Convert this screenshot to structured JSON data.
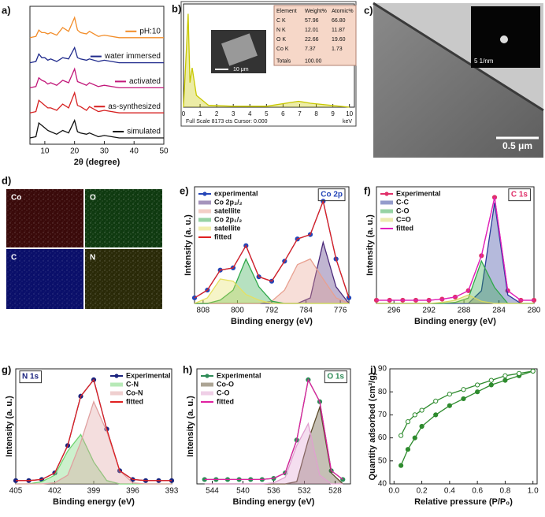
{
  "chart_data": [
    {
      "type": "line",
      "panel": "a)",
      "xlabel": "2θ (degree)",
      "x": [
        5,
        7,
        8,
        9,
        10,
        11,
        12,
        14,
        16,
        18,
        20,
        21,
        22,
        24,
        25,
        28,
        30,
        35,
        40,
        45,
        50
      ],
      "xlim": [
        5,
        50
      ],
      "xticks": [
        10,
        20,
        30,
        40,
        50
      ],
      "ylim": [
        -5,
        105
      ],
      "legend": "inline",
      "series": [
        {
          "name": "pH:10",
          "color": "#f28c28",
          "values": [
            80,
            81,
            86,
            84,
            84,
            83,
            84,
            82,
            88,
            85,
            96,
            86,
            84,
            83,
            85,
            81,
            82,
            80,
            80,
            80,
            80
          ]
        },
        {
          "name": "water immersed",
          "color": "#1f2a8c",
          "values": [
            60,
            61,
            67,
            64,
            64,
            62,
            63,
            61,
            64,
            63,
            72,
            64,
            63,
            62,
            63,
            61,
            62,
            60,
            60,
            60,
            60
          ]
        },
        {
          "name": "activated",
          "color": "#c2187a",
          "values": [
            40,
            41,
            48,
            46,
            45,
            43,
            44,
            42,
            46,
            44,
            55,
            45,
            44,
            42,
            44,
            41,
            42,
            40,
            40,
            40,
            40
          ]
        },
        {
          "name": "as-synthesized",
          "color": "#d62020",
          "values": [
            20,
            21,
            30,
            28,
            26,
            24,
            24,
            22,
            27,
            24,
            36,
            26,
            25,
            22,
            25,
            21,
            22,
            20,
            20,
            20,
            20
          ]
        },
        {
          "name": "simulated",
          "color": "#111111",
          "values": [
            0,
            1,
            12,
            10,
            8,
            6,
            5,
            3,
            6,
            4,
            14,
            5,
            4,
            3,
            4,
            1,
            2,
            0,
            0,
            0,
            0
          ]
        }
      ]
    },
    {
      "type": "line",
      "panel": "b)",
      "x": [
        0,
        0.28,
        0.39,
        0.52,
        0.78,
        1.5,
        3,
        5,
        6.93,
        7.65,
        10
      ],
      "xlim": [
        0,
        10.3
      ],
      "xticks": [
        0,
        1,
        2,
        3,
        4,
        5,
        6,
        7,
        8,
        9,
        10
      ],
      "ylim": [
        0,
        105
      ],
      "series": [
        {
          "color": "#c8c800",
          "fill": true,
          "values": [
            0,
            95,
            25,
            40,
            12,
            2,
            1,
            1,
            6,
            4,
            0
          ]
        }
      ]
    },
    {
      "type": "line",
      "panel": "e)",
      "xlabel": "Binding energy (eV)",
      "ylabel": "Intensity (a. u.)",
      "annotation": "Co 2p",
      "annotation_position": "upper right",
      "x": [
        810,
        807,
        804,
        801,
        798,
        795,
        792,
        789,
        786,
        783,
        780,
        777,
        774
      ],
      "xlim": [
        810,
        774
      ],
      "xticks": [
        808,
        800,
        792,
        784,
        776
      ],
      "ylim": [
        0,
        105
      ],
      "legend": "upper left",
      "series": [
        {
          "name": "experimental",
          "color": "#2546b8",
          "marker": "circle",
          "values": [
            5,
            12,
            30,
            32,
            52,
            24,
            20,
            38,
            58,
            62,
            92,
            40,
            5
          ]
        },
        {
          "name": "Co 2p₃/₂",
          "color": "#4b2a7a",
          "fill": true,
          "values": [
            0,
            0,
            0,
            0,
            0,
            0,
            0,
            0,
            0,
            5,
            55,
            15,
            0
          ]
        },
        {
          "name": "satellite",
          "color": "#e8a090",
          "fill": true,
          "values": [
            0,
            0,
            0,
            0,
            0,
            0,
            2,
            12,
            35,
            40,
            22,
            5,
            0
          ]
        },
        {
          "name": "Co 2p₁/₂",
          "color": "#2fa84a",
          "fill": true,
          "values": [
            0,
            0,
            3,
            12,
            40,
            15,
            2,
            0,
            0,
            0,
            0,
            0,
            0
          ]
        },
        {
          "name": "satellite",
          "color": "#e6e060",
          "fill": true,
          "values": [
            0,
            5,
            22,
            20,
            8,
            3,
            0,
            0,
            0,
            0,
            0,
            0,
            0
          ]
        },
        {
          "name": "fitted",
          "color": "#e02020",
          "values": [
            5,
            12,
            30,
            32,
            52,
            24,
            20,
            38,
            58,
            62,
            92,
            40,
            5
          ]
        }
      ]
    },
    {
      "type": "line",
      "panel": "f)",
      "xlabel": "Binding energy (eV)",
      "ylabel": "Intensity (a. u.)",
      "annotation": "C 1s",
      "annotation_position": "upper right",
      "x": [
        298,
        296.5,
        295,
        293.5,
        292,
        290.5,
        289,
        287.5,
        286,
        284.5,
        283,
        281.5,
        280
      ],
      "xlim": [
        298,
        280
      ],
      "xticks": [
        296,
        292,
        288,
        284,
        280
      ],
      "ylim": [
        0,
        110
      ],
      "legend": "upper left",
      "series": [
        {
          "name": "Experimental",
          "color": "#e0306a",
          "marker": "circle",
          "values": [
            3,
            3,
            3,
            3,
            3,
            4,
            6,
            12,
            45,
            100,
            12,
            3,
            3
          ]
        },
        {
          "name": "C-C",
          "color": "#2a3a9a",
          "fill": true,
          "values": [
            0,
            0,
            0,
            0,
            0,
            0,
            0,
            0,
            12,
            95,
            8,
            0,
            0
          ]
        },
        {
          "name": "C-O",
          "color": "#2fa84a",
          "fill": true,
          "values": [
            0,
            0,
            0,
            0,
            0,
            0,
            1,
            5,
            40,
            15,
            0,
            0,
            0
          ]
        },
        {
          "name": "C=O",
          "color": "#d8d860",
          "fill": true,
          "values": [
            0,
            0,
            0,
            0,
            0,
            1,
            3,
            8,
            2,
            0,
            0,
            0,
            0
          ]
        },
        {
          "name": "fitted",
          "color": "#e020c0",
          "values": [
            3,
            3,
            3,
            3,
            3,
            4,
            6,
            12,
            45,
            100,
            12,
            3,
            3
          ]
        }
      ]
    },
    {
      "type": "line",
      "panel": "g)",
      "xlabel": "Binding energy (eV)",
      "ylabel": "Intensity (a. u.)",
      "annotation": "N 1s",
      "annotation_position": "upper left",
      "x": [
        405,
        404,
        403,
        402,
        401,
        400,
        399,
        398,
        397,
        396,
        395,
        394,
        393
      ],
      "xlim": [
        405,
        393
      ],
      "xticks": [
        405,
        402,
        399,
        396,
        393
      ],
      "ylim": [
        0,
        105
      ],
      "legend": "upper right",
      "series": [
        {
          "name": "Experimental",
          "color": "#1a237e",
          "marker": "circle",
          "values": [
            3,
            3,
            4,
            10,
            35,
            80,
            95,
            50,
            12,
            4,
            3,
            3,
            3
          ]
        },
        {
          "name": "C-N",
          "color": "#6fd46f",
          "fill": true,
          "values": [
            0,
            0,
            2,
            8,
            30,
            45,
            20,
            3,
            0,
            0,
            0,
            0,
            0
          ]
        },
        {
          "name": "Co-N",
          "color": "#e0a0a0",
          "fill": true,
          "values": [
            0,
            0,
            0,
            1,
            8,
            38,
            75,
            48,
            12,
            1,
            0,
            0,
            0
          ]
        },
        {
          "name": "fitted",
          "color": "#e02020",
          "values": [
            3,
            3,
            4,
            10,
            35,
            80,
            95,
            50,
            12,
            4,
            3,
            3,
            3
          ]
        }
      ]
    },
    {
      "type": "line",
      "panel": "h)",
      "xlabel": "Binding energy (eV)",
      "ylabel": "Intensity (a. u.)",
      "annotation": "O 1s",
      "annotation_position": "upper right",
      "x": [
        545,
        543.5,
        542,
        540.5,
        539,
        537.5,
        536,
        534.5,
        533,
        531.5,
        530,
        528.5,
        527
      ],
      "xlim": [
        546,
        526
      ],
      "xticks": [
        544,
        540,
        536,
        532,
        528
      ],
      "ylim": [
        0,
        105
      ],
      "legend": "upper left",
      "series": [
        {
          "name": "Experimental",
          "color": "#2e8b57",
          "marker": "circle",
          "values": [
            4,
            4,
            4,
            4,
            4,
            4,
            5,
            10,
            40,
            95,
            75,
            12,
            4
          ]
        },
        {
          "name": "Co-O",
          "color": "#5a4a2a",
          "fill": true,
          "values": [
            0,
            0,
            0,
            0,
            0,
            0,
            0,
            0,
            2,
            40,
            70,
            10,
            0
          ]
        },
        {
          "name": "C-O",
          "color": "#e0a0d0",
          "fill": true,
          "values": [
            0,
            0,
            0,
            0,
            0,
            0,
            1,
            6,
            35,
            55,
            8,
            0,
            0
          ]
        },
        {
          "name": "fitted",
          "color": "#e020a0",
          "values": [
            4,
            4,
            4,
            4,
            4,
            4,
            5,
            10,
            40,
            95,
            75,
            12,
            4
          ]
        }
      ]
    },
    {
      "type": "line",
      "panel": "i)",
      "xlabel": "Relative pressure (P/P₀)",
      "ylabel": "Quantity adsorbed (cm³/g)",
      "x": [
        0.05,
        0.1,
        0.15,
        0.2,
        0.3,
        0.4,
        0.5,
        0.6,
        0.7,
        0.8,
        0.9,
        1.0
      ],
      "xlim": [
        -0.03,
        1.03
      ],
      "xticks": [
        {
          "value": 0,
          "label": "0.0"
        },
        0.2,
        0.4,
        0.6,
        0.8,
        {
          "value": 1,
          "label": "1.0"
        }
      ],
      "ylim": [
        40,
        90
      ],
      "yticks": [
        40,
        50,
        60,
        70,
        80,
        90
      ],
      "series": [
        {
          "color": "#2e8b2e",
          "marker": "circle",
          "values": [
            48,
            55,
            60,
            65,
            70,
            74,
            77,
            80,
            83,
            85,
            87,
            89
          ]
        },
        {
          "color": "#2e8b2e",
          "marker": "open-circle",
          "values": [
            61,
            67,
            70,
            72,
            76,
            79,
            81,
            83,
            85,
            87,
            88,
            89
          ]
        }
      ]
    }
  ],
  "eds": {
    "header": [
      "Element",
      "Weight%",
      "Atomic%"
    ],
    "rows": [
      [
        "C K",
        "57.96",
        "66.80"
      ],
      [
        "N K",
        "12.01",
        "11.87"
      ],
      [
        "O K",
        "22.66",
        "19.60"
      ],
      [
        "Co K",
        "7.37",
        "1.73"
      ],
      [
        "Totals",
        "100.00"
      ]
    ],
    "footer": "Full Scale 8173 cts Cursor: 0.000",
    "unit": "keV",
    "sem_scale": "10 μm"
  },
  "tem": {
    "panel": "c)",
    "scale_bar": "0.5 μm",
    "inset_scale": "5 1/nm"
  },
  "maps": {
    "panel": "d)",
    "elements": [
      "Co",
      "O",
      "C",
      "N"
    ]
  }
}
